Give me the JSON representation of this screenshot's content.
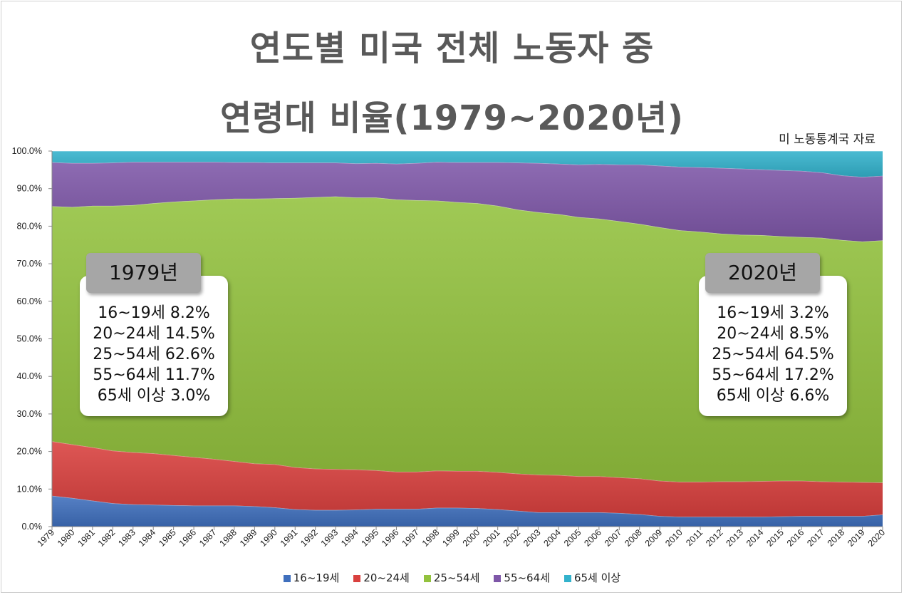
{
  "title_line1": "연도별 미국 전체 노동자 중",
  "title_line2": "연령대 비율(1979~2020년)",
  "source": "미 노동통계국 자료",
  "callout_1979": {
    "tag": "1979년",
    "lines": [
      "16~19세 8.2%",
      "20~24세 14.5%",
      "25~54세 62.6%",
      "55~64세 11.7%",
      "65세 이상 3.0%"
    ]
  },
  "callout_2020": {
    "tag": "2020년",
    "lines": [
      "16~19세 3.2%",
      "20~24세 8.5%",
      "25~54세 64.5%",
      "55~64세 17.2%",
      "65세 이상 6.6%"
    ]
  },
  "chart_data": {
    "type": "area",
    "stacked": true,
    "x": [
      1979,
      1980,
      1981,
      1982,
      1983,
      1984,
      1985,
      1986,
      1987,
      1988,
      1989,
      1990,
      1991,
      1992,
      1993,
      1994,
      1995,
      1996,
      1997,
      1998,
      1999,
      2000,
      2001,
      2002,
      2003,
      2004,
      2005,
      2006,
      2007,
      2008,
      2009,
      2010,
      2011,
      2012,
      2013,
      2014,
      2015,
      2016,
      2017,
      2018,
      2019,
      2020
    ],
    "ylim": [
      0,
      100
    ],
    "yticks": [
      "0.0%",
      "10.0%",
      "20.0%",
      "30.0%",
      "40.0%",
      "50.0%",
      "60.0%",
      "70.0%",
      "80.0%",
      "90.0%",
      "100.0%"
    ],
    "grid": false,
    "legend_position": "bottom",
    "series": [
      {
        "name": "16~19세",
        "color": "#3f6fbd",
        "values": [
          8.2,
          7.6,
          6.9,
          6.2,
          5.9,
          5.8,
          5.7,
          5.6,
          5.6,
          5.6,
          5.4,
          5.1,
          4.6,
          4.4,
          4.4,
          4.5,
          4.7,
          4.7,
          4.7,
          5.0,
          5.0,
          4.9,
          4.6,
          4.2,
          3.8,
          3.8,
          3.8,
          3.8,
          3.6,
          3.3,
          2.8,
          2.6,
          2.6,
          2.6,
          2.6,
          2.6,
          2.7,
          2.8,
          2.8,
          2.8,
          2.8,
          3.2
        ]
      },
      {
        "name": "20~24세",
        "color": "#d9403e",
        "values": [
          14.5,
          14.3,
          14.2,
          14.0,
          13.9,
          13.7,
          13.3,
          12.9,
          12.4,
          11.8,
          11.4,
          11.5,
          11.2,
          11.0,
          10.9,
          10.7,
          10.3,
          9.9,
          9.9,
          9.9,
          9.8,
          9.9,
          9.9,
          9.9,
          10.0,
          9.9,
          9.6,
          9.6,
          9.5,
          9.5,
          9.4,
          9.3,
          9.3,
          9.4,
          9.4,
          9.5,
          9.5,
          9.4,
          9.2,
          9.1,
          9.0,
          8.5
        ]
      },
      {
        "name": "25~54세",
        "color": "#93c23e",
        "values": [
          62.6,
          63.2,
          64.3,
          65.2,
          65.8,
          66.6,
          67.5,
          68.3,
          69.1,
          69.9,
          70.5,
          70.8,
          71.7,
          72.3,
          72.6,
          72.4,
          72.6,
          72.5,
          72.3,
          71.9,
          71.6,
          71.3,
          70.9,
          70.3,
          69.9,
          69.5,
          69.0,
          68.6,
          68.2,
          67.8,
          67.5,
          67.0,
          66.6,
          66.0,
          65.7,
          65.5,
          65.1,
          64.9,
          64.9,
          64.4,
          64.1,
          64.5
        ]
      },
      {
        "name": "55~64세",
        "color": "#7e57a8",
        "values": [
          11.7,
          11.7,
          11.4,
          11.5,
          11.5,
          11.0,
          10.6,
          10.3,
          10.0,
          9.7,
          9.7,
          9.5,
          9.4,
          9.2,
          9.0,
          9.1,
          9.2,
          9.5,
          9.9,
          10.3,
          10.6,
          10.9,
          11.6,
          12.5,
          13.1,
          13.4,
          14.0,
          14.5,
          15.1,
          15.8,
          16.4,
          16.9,
          17.2,
          17.5,
          17.6,
          17.5,
          17.6,
          17.6,
          17.4,
          17.2,
          17.2,
          17.2
        ]
      },
      {
        "name": "65세 이상",
        "color": "#33b2cc",
        "values": [
          3.0,
          3.2,
          3.2,
          3.1,
          2.9,
          2.9,
          2.9,
          2.9,
          2.9,
          3.0,
          3.0,
          3.1,
          3.1,
          3.1,
          3.1,
          3.3,
          3.2,
          3.4,
          3.2,
          2.9,
          3.0,
          3.0,
          3.0,
          3.1,
          3.2,
          3.4,
          3.6,
          3.5,
          3.6,
          3.6,
          3.9,
          4.2,
          4.3,
          4.5,
          4.7,
          4.9,
          5.1,
          5.3,
          5.7,
          6.5,
          6.9,
          6.6
        ]
      }
    ]
  }
}
